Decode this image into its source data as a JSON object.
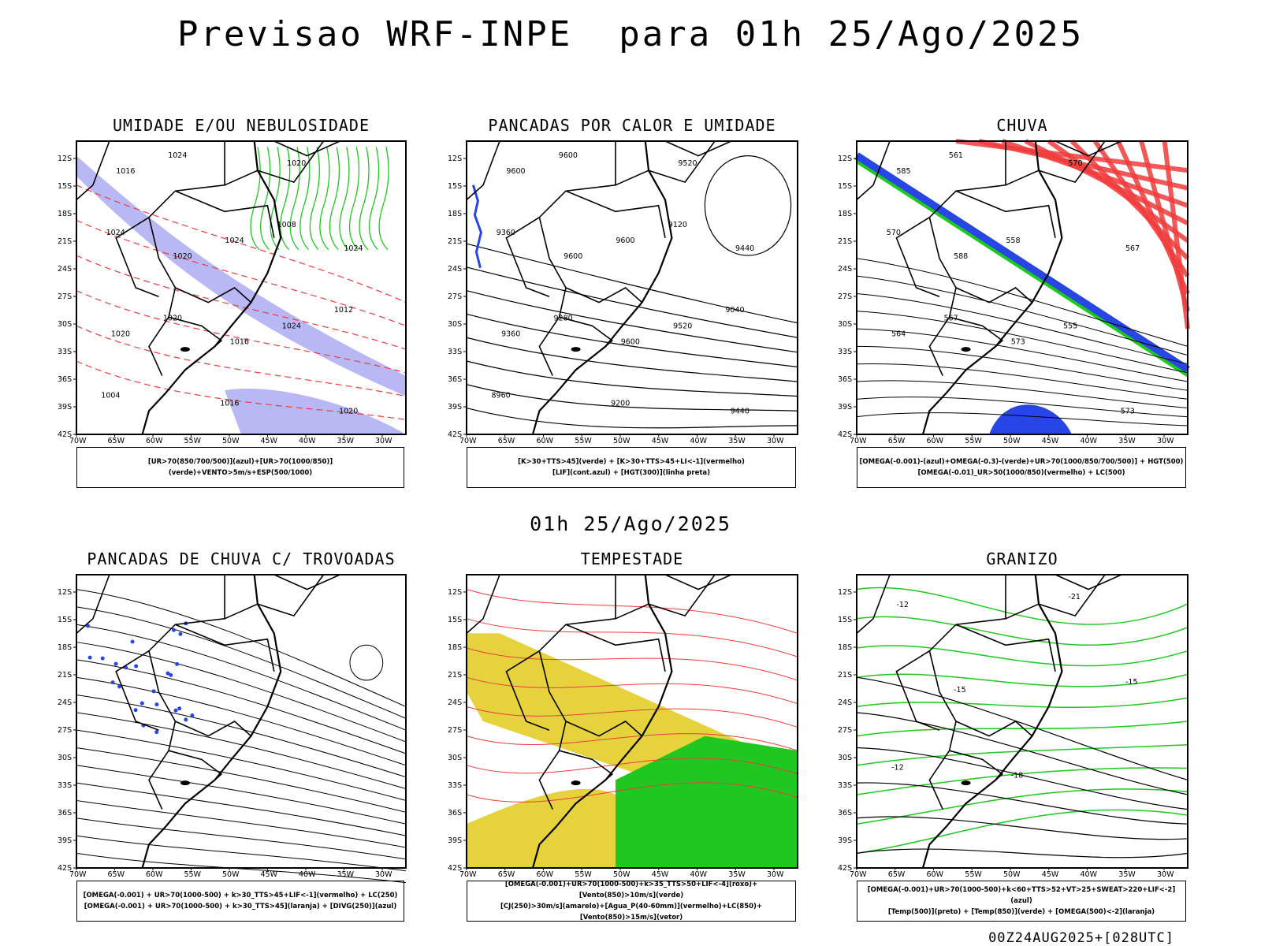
{
  "header": {
    "title": "Previsao WRF-INPE  para 01h 25/Ago/2025",
    "subtitle": "01h 25/Ago/2025",
    "footer": "00Z24AUG2025+[028UTC]"
  },
  "axes": {
    "lat_labels": [
      "12S",
      "15S",
      "18S",
      "21S",
      "24S",
      "27S",
      "30S",
      "33S",
      "36S",
      "39S",
      "42S"
    ],
    "lon_labels": [
      "70W",
      "65W",
      "60W",
      "55W",
      "50W",
      "45W",
      "40W",
      "35W",
      "30W"
    ]
  },
  "panels": [
    {
      "title": "UMIDADE E/OU NEBULOSIDADE",
      "caption": [
        "[UR>70(850/700/500)](azul)+[UR>70(1000/850)](verde)+VENTO>5m/s+ESP(500/1000)"
      ],
      "contour_labels": [
        "1016",
        "1020",
        "1016",
        "1020",
        "1024",
        "1020",
        "1024",
        "1024",
        "1024",
        "1020",
        "1024",
        "1020",
        "1016",
        "1008",
        "1012",
        "1004"
      ]
    },
    {
      "title": "PANCADAS POR CALOR E UMIDADE",
      "caption": [
        "[K>30+TTS>45](verde) + [K>30+TTS>45+LI<-1](vermelho)",
        "[LIF](cont.azul) + [HGT(300)](linha preta)"
      ],
      "contour_labels": [
        "9600",
        "9600",
        "9600",
        "9520",
        "9440",
        "9360",
        "9600",
        "9600",
        "9520",
        "9440",
        "9360",
        "9280",
        "9200",
        "9120",
        "9040",
        "8960"
      ]
    },
    {
      "title": "CHUVA",
      "caption": [
        "[OMEGA(-0.001)-(azul)+OMEGA(-0.3)-(verde)+UR>70(1000/850/700/500)] + HGT(500)",
        "[OMEGA(-0.01)_UR>50(1000/850)(vermelho) + LC(500)"
      ],
      "contour_labels": [
        "585",
        "588",
        "573",
        "570",
        "567",
        "564",
        "561",
        "558",
        "555",
        "573",
        "570",
        "567"
      ]
    },
    {
      "title": "PANCADAS DE CHUVA C/ TROVOADAS",
      "caption": [
        "[OMEGA(-0.001) + UR>70(1000-500) + k>30_TTS>45+LIF<-1](vermelho) + LC(250)",
        "[OMEGA(-0.001) + UR>70(1000-500) + k>30_TTS>45](laranja) + [DIVG(250)](azul)"
      ],
      "contour_labels": []
    },
    {
      "title": "TEMPESTADE",
      "caption": [
        "[OMEGA(-0.001)+UR>70(1000-500)+k>35_TTS>50+LIF<-4](roxo)+[Vento(850)>10m/s](verde)",
        "[CJ(250)>30m/s](amarelo)+[Agua_P(40-60mm)](vermelho)+LC(850)+[Vento(850)>15m/s](vetor)"
      ],
      "contour_labels": []
    },
    {
      "title": "GRANIZO",
      "caption": [
        "[OMEGA(-0.001)+UR>70(1000-500)+k<60+TTS>52+VT>25+SWEAT>220+LIF<-2](azul)",
        "[Temp(500)](preto) + [Temp(850)](verde) + [OMEGA(500)<-2](laranja)"
      ],
      "contour_labels": [
        "-12",
        "-15",
        "-18",
        "-21",
        "-15",
        "-12"
      ]
    }
  ],
  "colors": {
    "blue": "#2846e6",
    "green": "#1ec81e",
    "red": "#f03c3c",
    "yellow": "#e6d23c",
    "lavender": "#9a9af0",
    "orange": "#f08c28"
  }
}
